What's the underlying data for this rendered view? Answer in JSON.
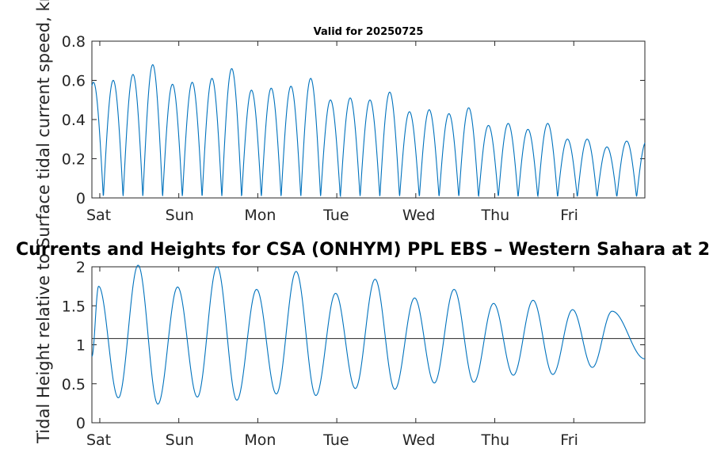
{
  "chart_data": [
    {
      "type": "line",
      "title": "Valid for 20250725",
      "ylabel": "Surface tidal current speed, kn",
      "xlabel": "",
      "ylim": [
        0,
        0.8
      ],
      "yticks": [
        0,
        0.2,
        0.4,
        0.6,
        0.8
      ],
      "ytick_labels": [
        "0",
        "0.2",
        "0.4",
        "0.6",
        "0.8"
      ],
      "xlim_days": [
        0,
        7
      ],
      "xtick_labels": [
        "Sat",
        "Sun",
        "Mon",
        "Tue",
        "Wed",
        "Thu",
        "Fri"
      ],
      "grid": false,
      "series": [
        {
          "color": "#0072bd",
          "peaks": [
            0.59,
            0.6,
            0.63,
            0.68,
            0.58,
            0.59,
            0.61,
            0.66,
            0.55,
            0.56,
            0.57,
            0.61,
            0.5,
            0.51,
            0.5,
            0.54,
            0.44,
            0.45,
            0.43,
            0.46,
            0.37,
            0.38,
            0.35,
            0.38,
            0.3,
            0.3,
            0.26,
            0.29
          ],
          "minimum": 0.01
        }
      ]
    },
    {
      "type": "line",
      "title": "Currents and Heights for CSA (ONHYM) PPL EBS  – Western Sahara at 2",
      "ylabel": "Tidal Height relative to",
      "xlabel": "",
      "ylim": [
        0,
        2
      ],
      "yticks": [
        0,
        0.5,
        1,
        1.5,
        2
      ],
      "ytick_labels": [
        "0",
        "0.5",
        "1",
        "1.5",
        "2"
      ],
      "xlim_days": [
        0,
        7
      ],
      "xtick_labels": [
        "Sat",
        "Sun",
        "Mon",
        "Tue",
        "Wed",
        "Thu",
        "Fri"
      ],
      "grid": false,
      "reference_line": {
        "y": 1.08,
        "color": "#262626"
      },
      "series": [
        {
          "color": "#0072bd",
          "highs": [
            1.75,
            2.02,
            1.74,
            2.0,
            1.71,
            1.94,
            1.66,
            1.84,
            1.6,
            1.71,
            1.53,
            1.57,
            1.45,
            1.43
          ],
          "lows": [
            0.32,
            0.24,
            0.33,
            0.29,
            0.37,
            0.35,
            0.44,
            0.43,
            0.51,
            0.52,
            0.61,
            0.62,
            0.71
          ],
          "start_value": 0.85,
          "end_value": 0.82
        }
      ]
    }
  ]
}
